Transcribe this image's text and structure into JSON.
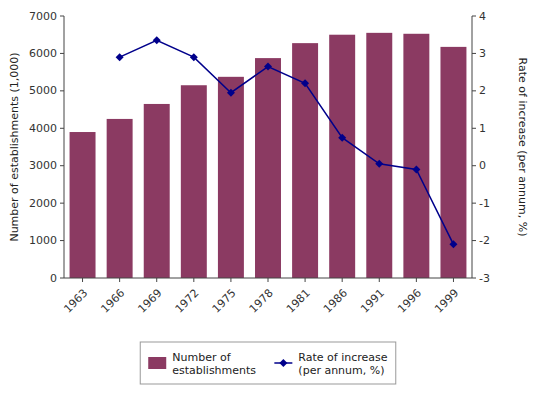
{
  "chart_data": {
    "type": "bar",
    "categories": [
      "1963",
      "1966",
      "1969",
      "1972",
      "1975",
      "1978",
      "1981",
      "1986",
      "1991",
      "1996",
      "1999"
    ],
    "series": [
      {
        "name": "Number of\nestablishments",
        "type": "bar",
        "color": "#8B3A62",
        "values": [
          3900,
          4250,
          4650,
          5150,
          5375,
          5875,
          6275,
          6500,
          6550,
          6525,
          6175
        ]
      },
      {
        "name": "Rate of increase\n(per annum, %)",
        "type": "line",
        "color": "#00008B",
        "marker": "diamond",
        "axis": "y2",
        "values": [
          null,
          2.9,
          3.35,
          2.9,
          1.95,
          2.65,
          2.2,
          0.75,
          0.05,
          -0.1,
          -2.1
        ]
      }
    ],
    "ylabel": "Number of establishments (1,000)",
    "y2label": "Rate of increase (per annum, %)",
    "ylim": [
      0,
      7000
    ],
    "yticks": [
      0,
      1000,
      2000,
      3000,
      4000,
      5000,
      6000,
      7000
    ],
    "y2lim": [
      -3.0,
      4.0
    ],
    "y2ticks": [
      -3.0,
      -2.0,
      -1.0,
      0.0,
      1.0,
      2.0,
      3.0,
      4.0
    ],
    "grid": false,
    "legend": "bottom"
  }
}
